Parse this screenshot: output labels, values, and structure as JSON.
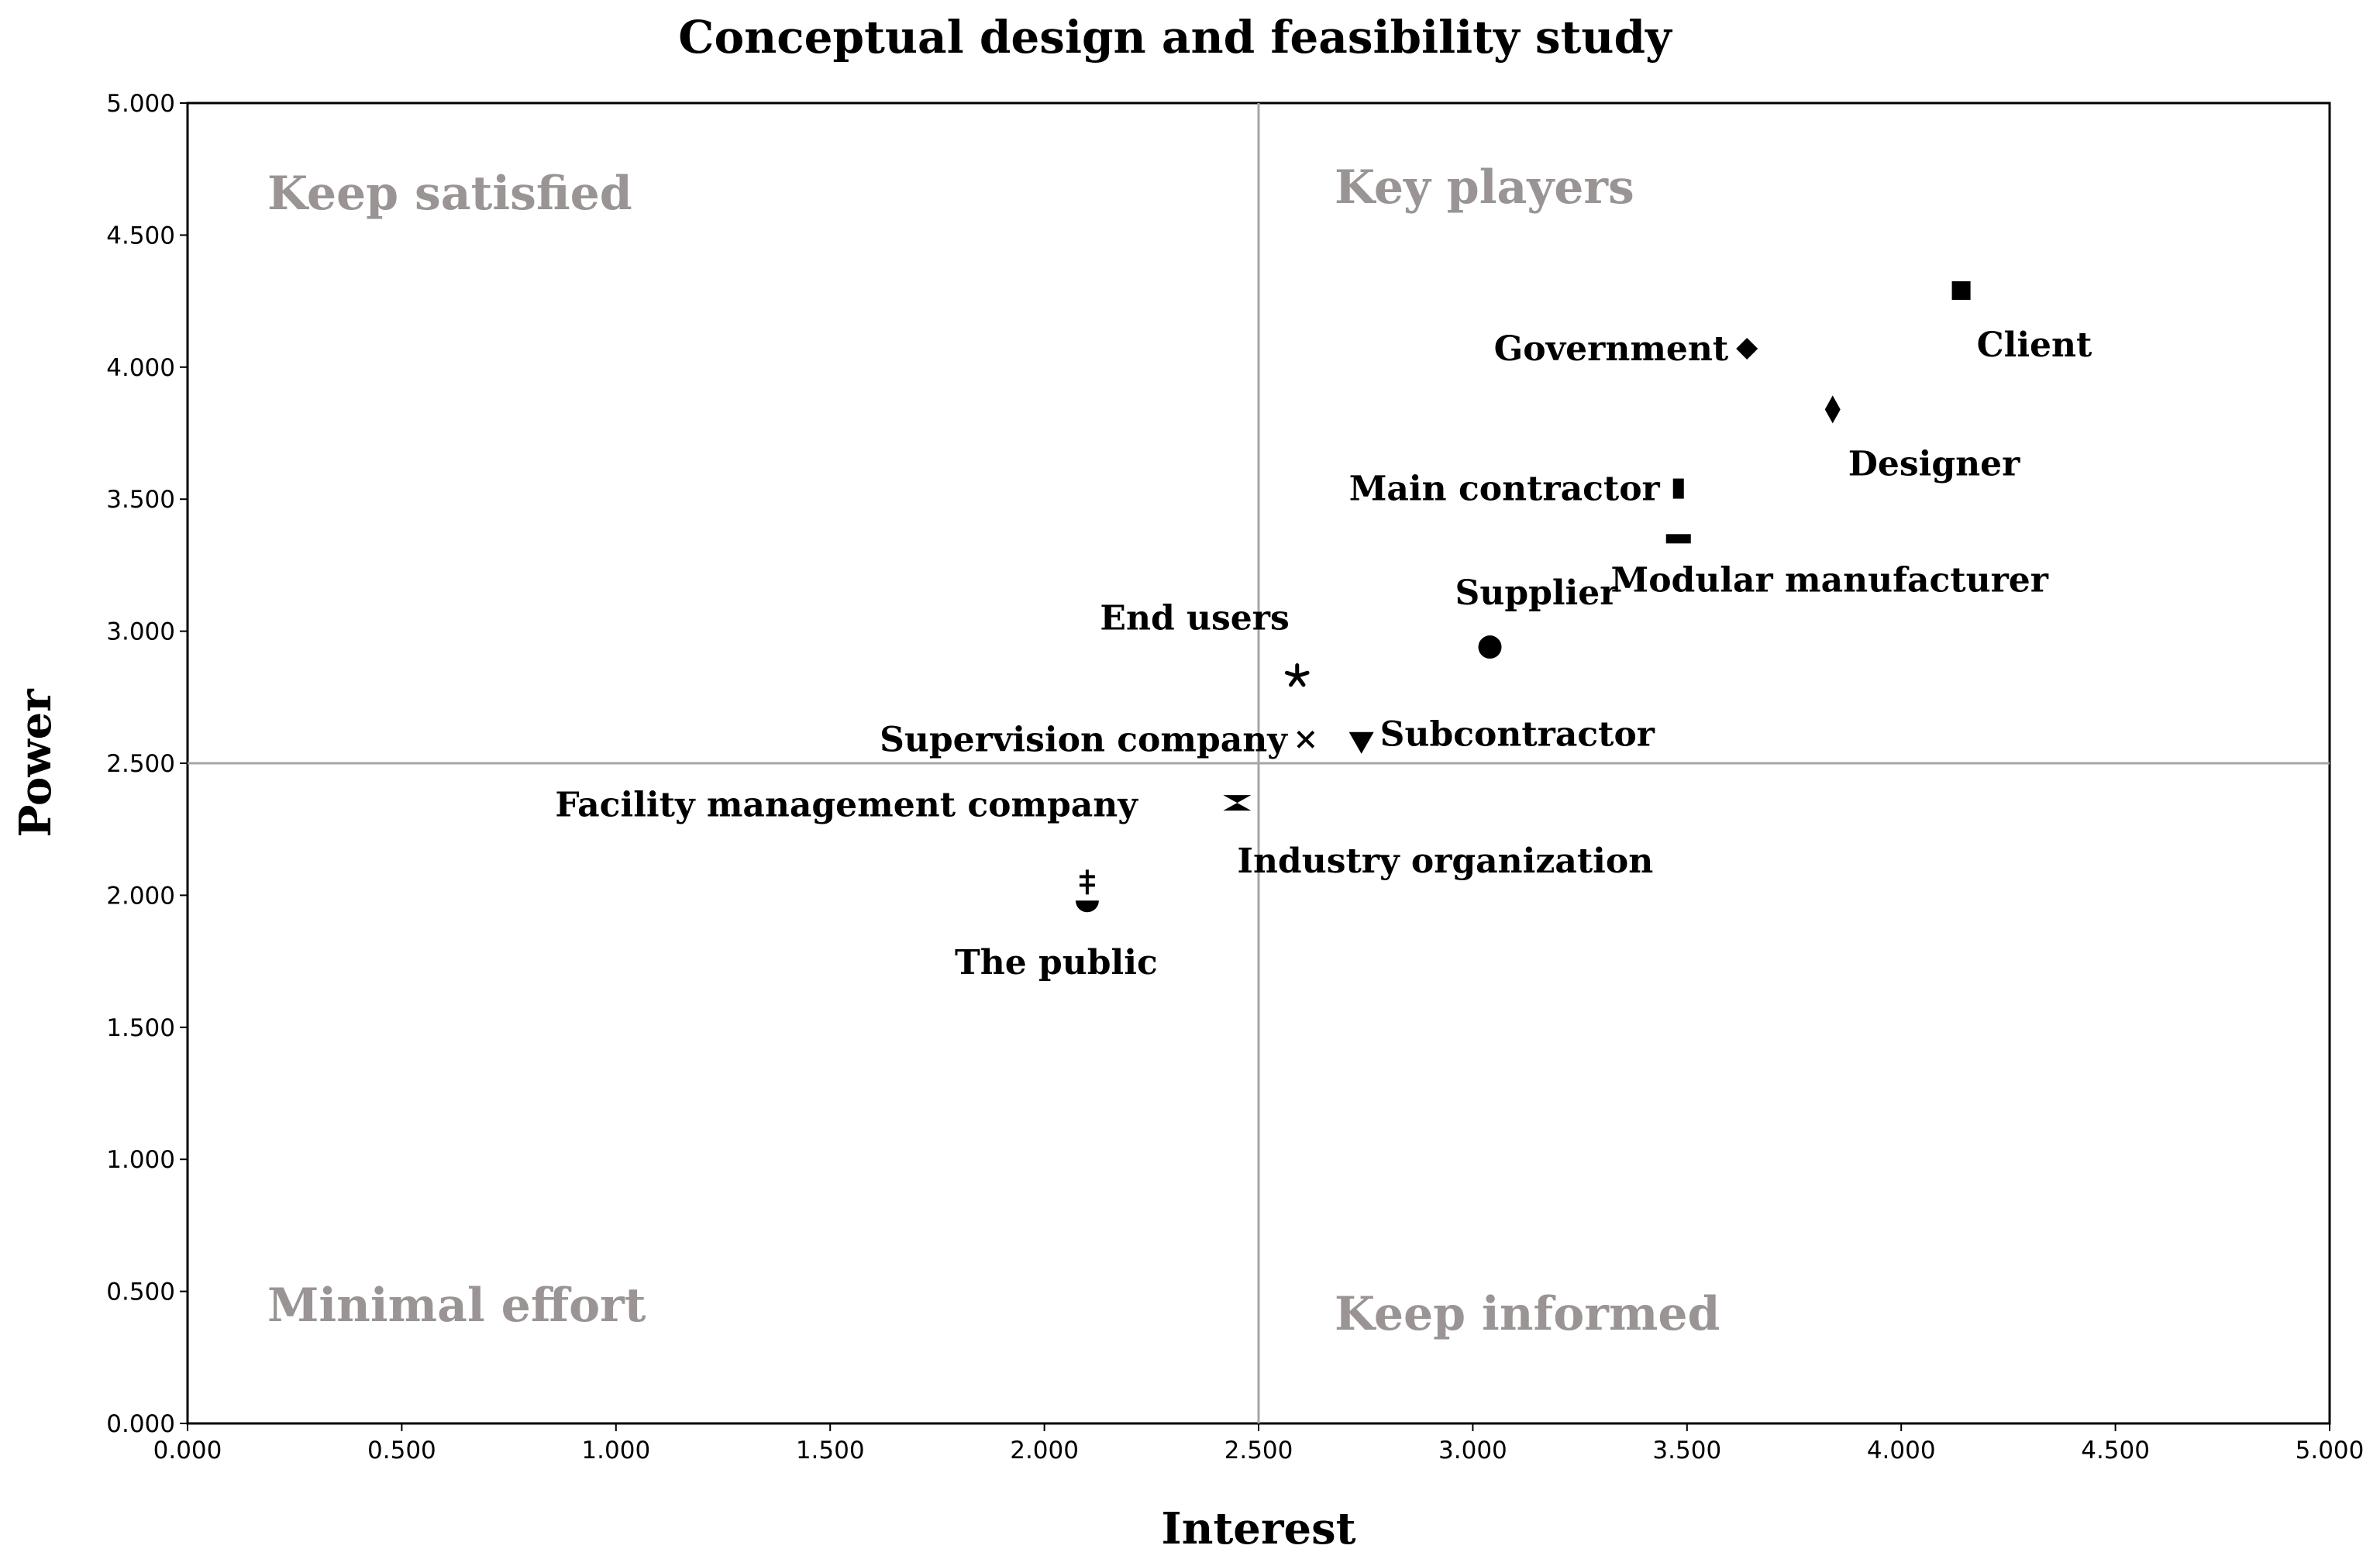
{
  "chart_data": {
    "type": "scatter",
    "title": "Conceptual design and feasibility study",
    "xlabel": "Interest",
    "ylabel": "Power",
    "xlim": [
      0,
      5
    ],
    "ylim": [
      0,
      5
    ],
    "xticks": [
      "0.000",
      "0.500",
      "1.000",
      "1.500",
      "2.000",
      "2.500",
      "3.000",
      "3.500",
      "4.000",
      "4.500",
      "5.000"
    ],
    "yticks": [
      "0.000",
      "0.500",
      "1.000",
      "1.500",
      "2.000",
      "2.500",
      "3.000",
      "3.500",
      "4.000",
      "4.500",
      "5.000"
    ],
    "reference_lines": {
      "x": 2.5,
      "y": 2.5,
      "color": "#a8a4a4"
    },
    "quadrants": [
      {
        "label": "Keep satisfied",
        "position": "top-left"
      },
      {
        "label": "Key players",
        "position": "top-right"
      },
      {
        "label": "Minimal effort",
        "position": "bottom-left"
      },
      {
        "label": "Keep informed",
        "position": "bottom-right"
      }
    ],
    "points": [
      {
        "name": "Client",
        "x": 4.14,
        "y": 4.29,
        "marker": "square",
        "label_pos": "below-right"
      },
      {
        "name": "Government",
        "x": 3.64,
        "y": 4.07,
        "marker": "diamond",
        "label_pos": "left"
      },
      {
        "name": "Designer",
        "x": 3.84,
        "y": 3.84,
        "marker": "thin-diamond",
        "label_pos": "below-right"
      },
      {
        "name": "Main contractor",
        "x": 3.48,
        "y": 3.54,
        "marker": "small-rect",
        "label_pos": "left"
      },
      {
        "name": "Modular manufacturer",
        "x": 3.48,
        "y": 3.35,
        "marker": "hbar",
        "label_pos": "below"
      },
      {
        "name": "Supplier",
        "x": 3.04,
        "y": 2.94,
        "marker": "circle",
        "label_pos": "above"
      },
      {
        "name": "End users",
        "x": 2.59,
        "y": 2.83,
        "marker": "star",
        "label_pos": "above-left"
      },
      {
        "name": "Supervision company",
        "x": 2.61,
        "y": 2.59,
        "marker": "x",
        "label_pos": "left"
      },
      {
        "name": "Subcontractor",
        "x": 2.74,
        "y": 2.58,
        "marker": "triangle-down",
        "label_pos": "right"
      },
      {
        "name": "Industry organization",
        "x": 2.45,
        "y": 2.35,
        "marker": "bowtie",
        "label_pos": "below-right"
      },
      {
        "name": "Facility management company",
        "x": 2.1,
        "y": 2.05,
        "marker": "double-cross",
        "label_pos": "above-left"
      },
      {
        "name": "The public",
        "x": 2.1,
        "y": 1.98,
        "marker": "half-circle",
        "label_pos": "below"
      }
    ]
  }
}
